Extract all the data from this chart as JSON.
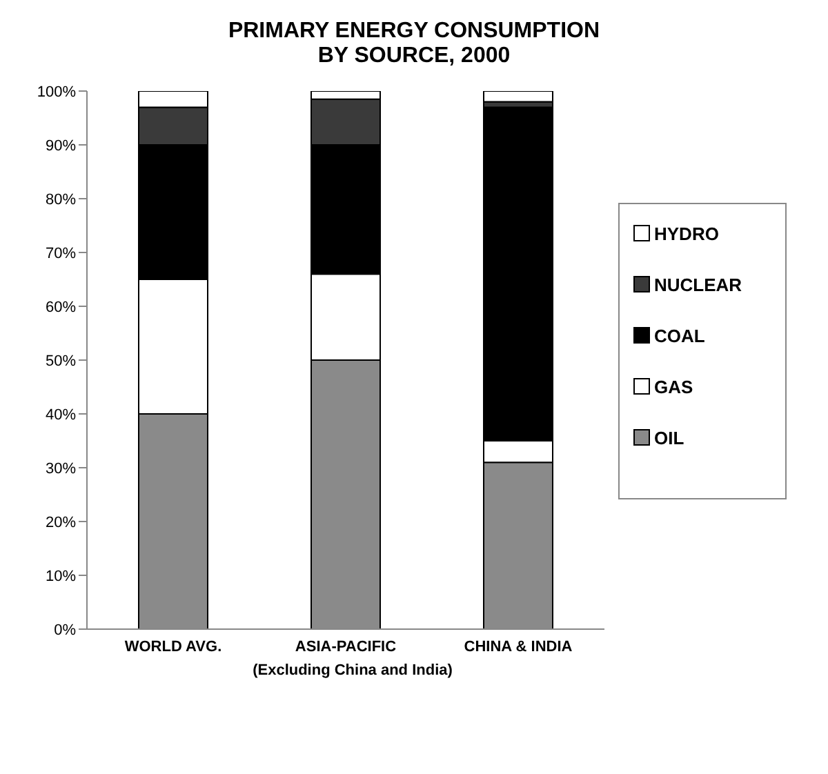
{
  "chart_data": {
    "type": "bar",
    "stacked": true,
    "title": "PRIMARY ENERGY CONSUMPTION\nBY SOURCE, 2000",
    "categories": [
      "WORLD AVG.",
      "ASIA-PACIFIC",
      "CHINA & INDIA"
    ],
    "series": [
      {
        "name": "OIL",
        "color": "#8a8a8a",
        "values": [
          40,
          50,
          31
        ]
      },
      {
        "name": "GAS",
        "color": "#ffffff",
        "values": [
          25,
          16,
          4
        ]
      },
      {
        "name": "COAL",
        "color": "#000000",
        "values": [
          25,
          24,
          62
        ]
      },
      {
        "name": "NUCLEAR",
        "color": "#3a3a3a",
        "values": [
          7,
          8.5,
          1
        ]
      },
      {
        "name": "HYDRO",
        "color": "#ffffff",
        "values": [
          3,
          1.5,
          2
        ]
      }
    ],
    "ylim": [
      0,
      100
    ],
    "yticks": [
      {
        "value": 0,
        "label": "0%"
      },
      {
        "value": 10,
        "label": "10%"
      },
      {
        "value": 20,
        "label": "20%"
      },
      {
        "value": 30,
        "label": "30%"
      },
      {
        "value": 40,
        "label": "40%"
      },
      {
        "value": 50,
        "label": "50%"
      },
      {
        "value": 60,
        "label": "60%"
      },
      {
        "value": 70,
        "label": "70%"
      },
      {
        "value": 80,
        "label": "80%"
      },
      {
        "value": 90,
        "label": "90%"
      },
      {
        "value": 100,
        "label": "100%"
      }
    ],
    "annotations": [
      "(Excluding China and India)"
    ],
    "legend": "right",
    "grid": false
  }
}
